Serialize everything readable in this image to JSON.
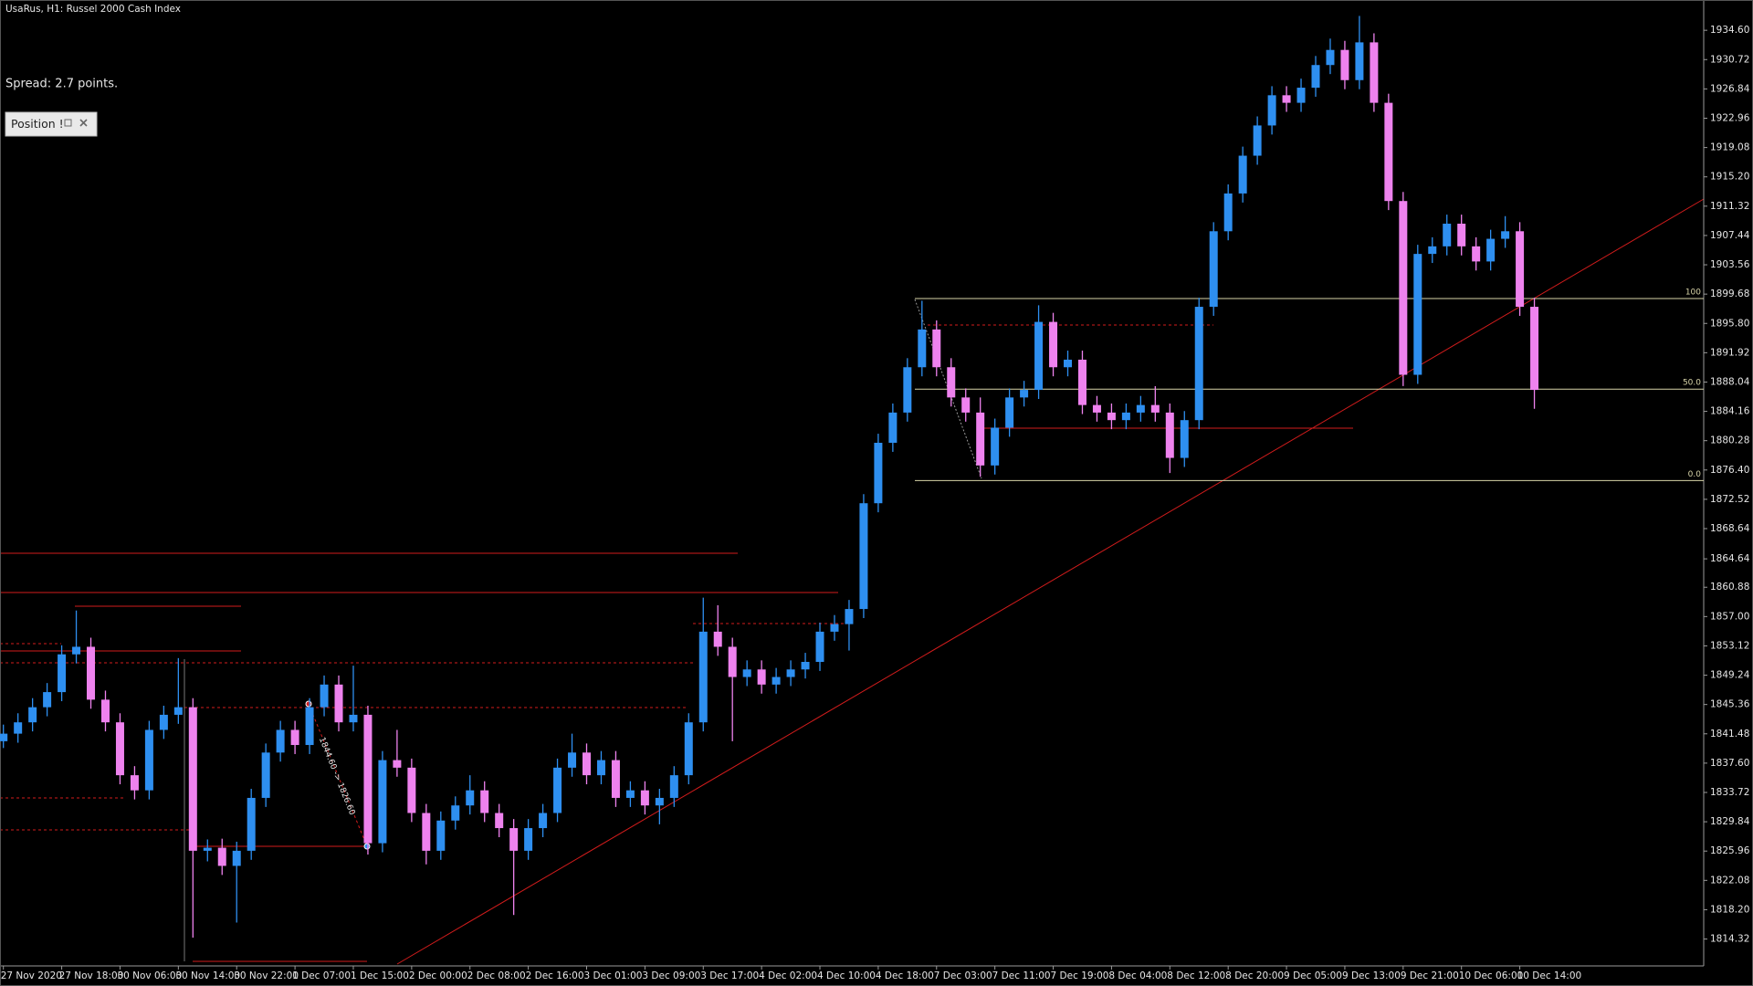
{
  "chart_data": {
    "type": "candlestick",
    "title": "UsaRus, H1:  Russel 2000 Cash Index",
    "spread_text": "Spread: 2.7 points.",
    "position_button": "Position !",
    "annotation": "1844.60 -> 1826.60",
    "up_color": "#2e8ff0",
    "down_color": "#ee82ee",
    "ylim": [
      1810.76,
      1938.16
    ],
    "yticks": [
      1814.32,
      {
        "value": 1818.2,
        "label": "1818.20"
      },
      1822.08,
      1825.96,
      1829.84,
      1833.72,
      {
        "value": 1837.6,
        "label": "1837.60"
      },
      1841.48,
      1845.36,
      1849.24,
      1853.12,
      {
        "value": 1857,
        "label": "1857.00"
      },
      1860.88,
      1864.64,
      1868.64,
      1872.52,
      {
        "value": 1876.4,
        "label": "1876.40"
      },
      1880.28,
      1884.16,
      1888.04,
      1891.92,
      {
        "value": 1895.8,
        "label": "1895.80"
      },
      1899.68,
      1903.56,
      1907.44,
      1911.32,
      {
        "value": 1915.2,
        "label": "1915.20"
      },
      1919.08,
      1922.96,
      1926.84,
      1930.72,
      {
        "value": 1934.6,
        "label": "1934.60"
      }
    ],
    "fibo_levels": [
      {
        "label": "100",
        "value": 1899.1
      },
      {
        "label": "50.0",
        "value": 1887.1
      },
      {
        "label": "0.0",
        "value": 1875.0
      }
    ],
    "x_labels": [
      "27 Nov 2020",
      "27 Nov 18:00",
      "30 Nov 06:00",
      "30 Nov 14:00",
      "30 Nov 22:00",
      "1 Dec 07:00",
      "1 Dec 15:00",
      "2 Dec 00:00",
      "2 Dec 08:00",
      "2 Dec 16:00",
      "3 Dec 01:00",
      "3 Dec 09:00",
      "3 Dec 17:00",
      "4 Dec 02:00",
      "4 Dec 10:00",
      "4 Dec 18:00",
      "7 Dec 03:00",
      "7 Dec 11:00",
      "7 Dec 19:00",
      "8 Dec 04:00",
      "8 Dec 12:00",
      "8 Dec 20:00",
      "9 Dec 05:00",
      "9 Dec 13:00",
      "9 Dec 21:00",
      "10 Dec 06:00",
      "10 Dec 14:00"
    ],
    "candles": [
      [
        1840.5,
        1842.7,
        1839.6,
        1841.5
      ],
      [
        1841.5,
        1844.2,
        1840.3,
        1843
      ],
      [
        1843,
        1846.2,
        1841.8,
        1845
      ],
      [
        1845,
        1848.2,
        1843.8,
        1847
      ],
      [
        1847,
        1853.2,
        1845.8,
        1852
      ],
      [
        1852,
        1857.8,
        1850.8,
        1853
      ],
      [
        1853,
        1854.2,
        1844.8,
        1846
      ],
      [
        1846,
        1847.2,
        1841.8,
        1843
      ],
      [
        1843,
        1844.2,
        1834.8,
        1836
      ],
      [
        1836,
        1837.2,
        1832.8,
        1834
      ],
      [
        1834,
        1843.2,
        1832.8,
        1842
      ],
      [
        1842,
        1845.2,
        1840.8,
        1844
      ],
      [
        1844,
        1851.5,
        1842.8,
        1845
      ],
      [
        1845,
        1846.2,
        1814.5,
        1826
      ],
      [
        1826,
        1827.5,
        1824.6,
        1826.4
      ],
      [
        1826.4,
        1827.6,
        1822.8,
        1824
      ],
      [
        1824,
        1827.2,
        1816.5,
        1826
      ],
      [
        1826,
        1834.2,
        1824.8,
        1833
      ],
      [
        1833,
        1840.2,
        1831.8,
        1839
      ],
      [
        1839,
        1843.2,
        1837.8,
        1842
      ],
      [
        1842,
        1843.2,
        1838.8,
        1840
      ],
      [
        1840,
        1846.2,
        1838.8,
        1845
      ],
      [
        1845,
        1849.2,
        1843.8,
        1848
      ],
      [
        1848,
        1849.2,
        1841.8,
        1843
      ],
      [
        1843,
        1850.5,
        1841.8,
        1844
      ],
      [
        1844,
        1845.2,
        1825.5,
        1827
      ],
      [
        1827,
        1839.2,
        1825.8,
        1838
      ],
      [
        1838,
        1842,
        1835.8,
        1837
      ],
      [
        1837,
        1838.2,
        1829.8,
        1831
      ],
      [
        1831,
        1832.2,
        1824.2,
        1826
      ],
      [
        1826,
        1831.2,
        1824.8,
        1830
      ],
      [
        1830,
        1833.2,
        1828.8,
        1832
      ],
      [
        1832,
        1836,
        1830.8,
        1834
      ],
      [
        1834,
        1835.2,
        1829.8,
        1831
      ],
      [
        1831,
        1832.2,
        1827.8,
        1829
      ],
      [
        1829,
        1830.2,
        1817.5,
        1826
      ],
      [
        1826,
        1830.2,
        1824.8,
        1829
      ],
      [
        1829,
        1832.2,
        1827.8,
        1831
      ],
      [
        1831,
        1838.2,
        1829.8,
        1837
      ],
      [
        1837,
        1841.5,
        1835.8,
        1839
      ],
      [
        1839,
        1840.2,
        1834.8,
        1836
      ],
      [
        1836,
        1839.2,
        1834.8,
        1838
      ],
      [
        1838,
        1839.2,
        1831.8,
        1833
      ],
      [
        1833,
        1835.2,
        1831.8,
        1834
      ],
      [
        1834,
        1835.2,
        1830.8,
        1832
      ],
      [
        1832,
        1834.2,
        1829.5,
        1833
      ],
      [
        1833,
        1837.2,
        1831.8,
        1836
      ],
      [
        1836,
        1844.2,
        1834.8,
        1843
      ],
      [
        1843,
        1859.5,
        1841.8,
        1855
      ],
      [
        1855,
        1858.5,
        1851.8,
        1853
      ],
      [
        1853,
        1854.2,
        1840.5,
        1849
      ],
      [
        1849,
        1851.2,
        1847.8,
        1850
      ],
      [
        1850,
        1851.2,
        1846.8,
        1848
      ],
      [
        1848,
        1850.2,
        1846.8,
        1849
      ],
      [
        1849,
        1851.2,
        1847.8,
        1850
      ],
      [
        1850,
        1852.2,
        1848.8,
        1851
      ],
      [
        1851,
        1856.2,
        1849.8,
        1855
      ],
      [
        1855,
        1857.2,
        1853.8,
        1856
      ],
      [
        1856,
        1859.2,
        1852.5,
        1858
      ],
      [
        1858,
        1873.2,
        1856.8,
        1872
      ],
      [
        1872,
        1881.2,
        1870.8,
        1880
      ],
      [
        1880,
        1885.2,
        1878.8,
        1884
      ],
      [
        1884,
        1891.2,
        1882.8,
        1890
      ],
      [
        1890,
        1898.8,
        1888.8,
        1895
      ],
      [
        1895,
        1896.2,
        1888.8,
        1890
      ],
      [
        1890,
        1891.2,
        1884.8,
        1886
      ],
      [
        1886,
        1887.2,
        1882.8,
        1884
      ],
      [
        1884,
        1886,
        1875.5,
        1877
      ],
      [
        1877,
        1883.2,
        1875.8,
        1882
      ],
      [
        1882,
        1887.2,
        1880.8,
        1886
      ],
      [
        1886,
        1888.2,
        1884.8,
        1887
      ],
      [
        1887,
        1898.2,
        1885.8,
        1896
      ],
      [
        1896,
        1897.2,
        1888.8,
        1890
      ],
      [
        1890,
        1892.2,
        1888.8,
        1891
      ],
      [
        1891,
        1892.2,
        1883.8,
        1885
      ],
      [
        1885,
        1886.2,
        1882.8,
        1884
      ],
      [
        1884,
        1885.2,
        1881.8,
        1883
      ],
      [
        1883,
        1885.2,
        1881.8,
        1884
      ],
      [
        1884,
        1886.2,
        1882.8,
        1885
      ],
      [
        1885,
        1887.5,
        1882.8,
        1884
      ],
      [
        1884,
        1885.2,
        1876,
        1878
      ],
      [
        1878,
        1884.2,
        1876.8,
        1883
      ],
      [
        1883,
        1899.2,
        1881.8,
        1898
      ],
      [
        1898,
        1909.2,
        1896.8,
        1908
      ],
      [
        1908,
        1914.2,
        1906.8,
        1913
      ],
      [
        1913,
        1919.2,
        1911.8,
        1918
      ],
      [
        1918,
        1923.2,
        1916.8,
        1922
      ],
      [
        1922,
        1927.2,
        1920.8,
        1926
      ],
      [
        1926,
        1927.2,
        1923.8,
        1925
      ],
      [
        1925,
        1928.2,
        1923.8,
        1927
      ],
      [
        1927,
        1931.2,
        1925.8,
        1930
      ],
      [
        1930,
        1933.5,
        1928.8,
        1932
      ],
      [
        1932,
        1933.2,
        1926.8,
        1928
      ],
      [
        1928,
        1936.5,
        1926.8,
        1933
      ],
      [
        1933,
        1934.2,
        1923.8,
        1925
      ],
      [
        1925,
        1926.2,
        1910.8,
        1912
      ],
      [
        1912,
        1913.2,
        1887.5,
        1889
      ],
      [
        1889,
        1906.2,
        1887.8,
        1905
      ],
      [
        1905,
        1907.2,
        1903.8,
        1906
      ],
      [
        1906,
        1910.2,
        1904.8,
        1909
      ],
      [
        1909,
        1910.2,
        1904.8,
        1906
      ],
      [
        1906,
        1907.2,
        1902.8,
        1904
      ],
      [
        1904,
        1908.2,
        1902.8,
        1907
      ],
      [
        1907,
        1910,
        1905.8,
        1908
      ],
      [
        1908,
        1909.2,
        1896.8,
        1898
      ],
      [
        1898,
        1899.2,
        1884.5,
        1887
      ]
    ]
  }
}
